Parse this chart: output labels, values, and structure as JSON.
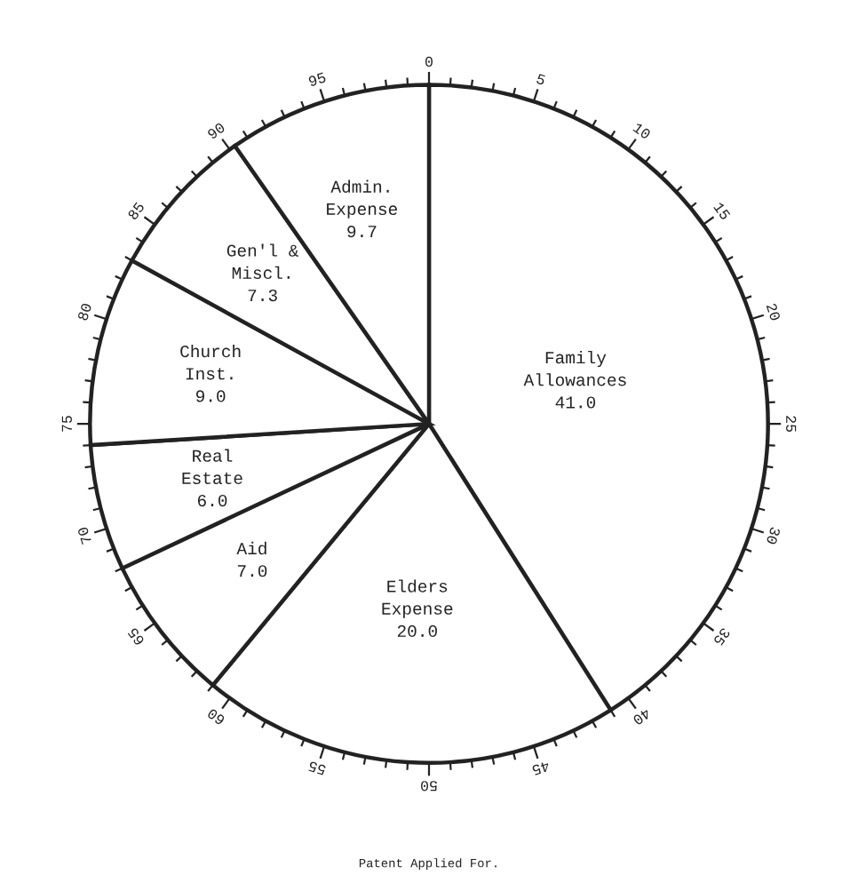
{
  "chart_data": {
    "type": "pie",
    "categories": [
      "Family\nAllowances",
      "Elders\nExpense",
      "Aid",
      "Real\nEstate",
      "Church\nInst.",
      "Gen'l &\nMiscl.",
      "Admin.\nExpense"
    ],
    "values": [
      41.0,
      20.0,
      7.0,
      6.0,
      9.0,
      7.3,
      9.7
    ],
    "value_labels": [
      "41.0",
      "20.0",
      "7.0",
      "6.0",
      "9.0",
      "7.3",
      "9.7"
    ],
    "colors": [
      "#ffffff",
      "#ffffff",
      "#ffffff",
      "#ffffff",
      "#ffffff",
      "#ffffff",
      "#ffffff"
    ],
    "annotations": [
      "0",
      "5",
      "10",
      "15",
      "20",
      "25",
      "30",
      "35",
      "40",
      "45",
      "50",
      "55",
      "60",
      "65",
      "70",
      "75",
      "80",
      "85",
      "90",
      "95",
      "Patent Applied For."
    ]
  }
}
